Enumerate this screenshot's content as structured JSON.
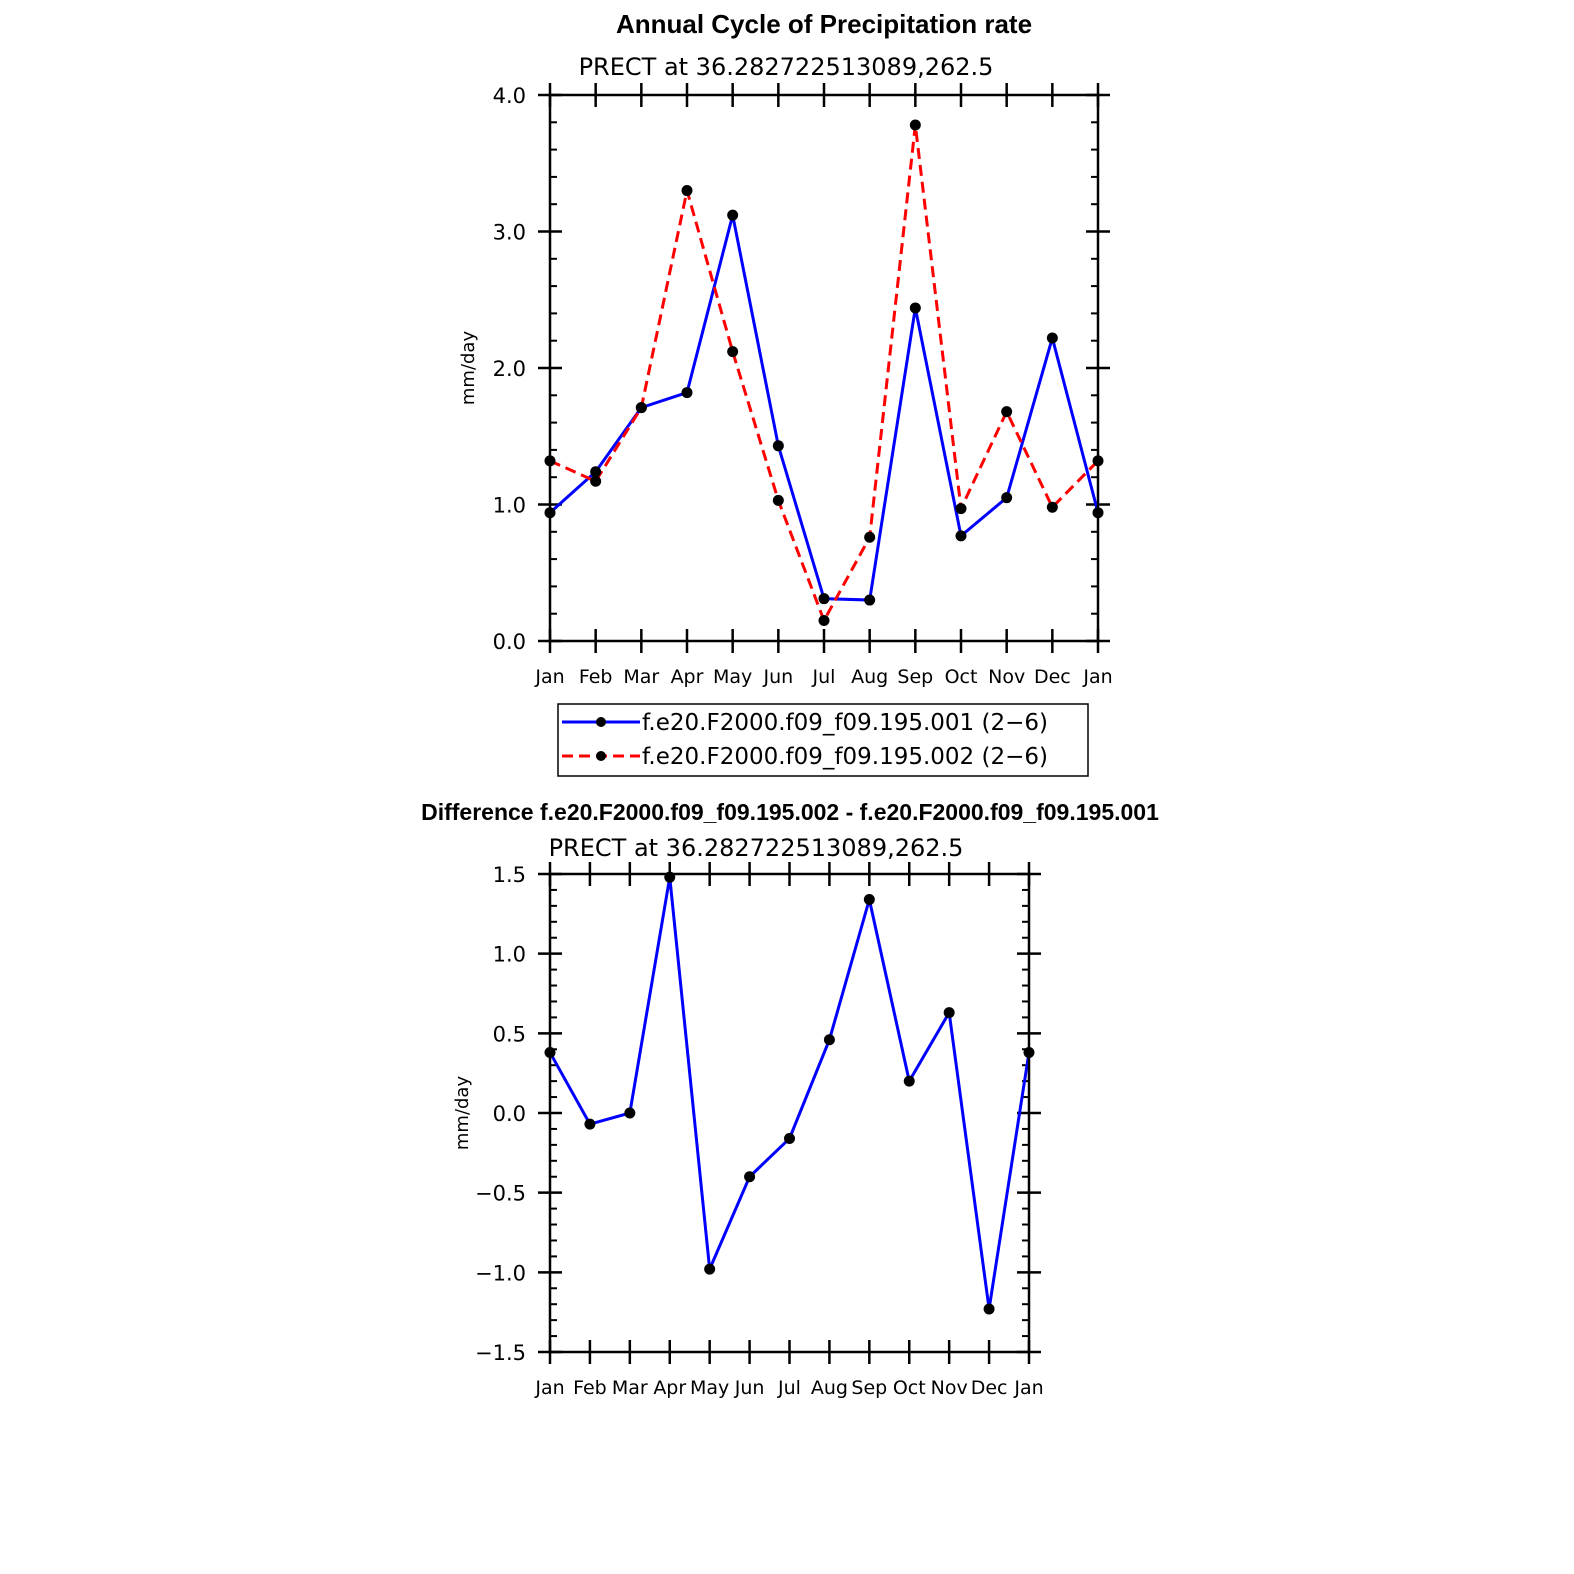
{
  "chart_data": [
    {
      "type": "line",
      "title": "Annual Cycle of Precipitation rate",
      "subtitle": "PRECT at 36.282722513089,262.5",
      "ylabel": "mm/day",
      "xlabel": "",
      "ylim": [
        0.0,
        4.0
      ],
      "yticks": [
        "0.0",
        "1.0",
        "2.0",
        "3.0",
        "4.0"
      ],
      "categories": [
        "Jan",
        "Feb",
        "Mar",
        "Apr",
        "May",
        "Jun",
        "Jul",
        "Aug",
        "Sep",
        "Oct",
        "Nov",
        "Dec",
        "Jan"
      ],
      "legend_position": "bottom",
      "series": [
        {
          "name": "f.e20.F2000.f09_f09.195.001 (2−6)",
          "color": "#0000ff",
          "dash": "solid",
          "values": [
            0.94,
            1.24,
            1.71,
            1.82,
            3.12,
            1.43,
            0.31,
            0.3,
            2.44,
            0.77,
            1.05,
            2.22,
            0.94
          ]
        },
        {
          "name": "f.e20.F2000.f09_f09.195.002 (2−6)",
          "color": "#ff0000",
          "dash": "dashed",
          "values": [
            1.32,
            1.17,
            1.71,
            3.3,
            2.12,
            1.03,
            0.15,
            0.76,
            3.78,
            0.97,
            1.68,
            0.98,
            1.32
          ]
        }
      ]
    },
    {
      "type": "line",
      "title": "Difference f.e20.F2000.f09_f09.195.002 - f.e20.F2000.f09_f09.195.001",
      "subtitle": "PRECT at 36.282722513089,262.5",
      "ylabel": "mm/day",
      "xlabel": "",
      "ylim": [
        -1.5,
        1.5
      ],
      "yticks": [
        "−1.5",
        "−1.0",
        "−0.5",
        "0.0",
        "0.5",
        "1.0",
        "1.5"
      ],
      "categories": [
        "Jan",
        "Feb",
        "Mar",
        "Apr",
        "May",
        "Jun",
        "Jul",
        "Aug",
        "Sep",
        "Oct",
        "Nov",
        "Dec",
        "Jan"
      ],
      "series": [
        {
          "name": "difference",
          "color": "#0000ff",
          "dash": "solid",
          "values": [
            0.38,
            -0.07,
            0.0,
            1.48,
            -0.98,
            -0.4,
            -0.16,
            0.46,
            1.34,
            0.2,
            0.63,
            -1.23,
            0.38
          ]
        }
      ]
    }
  ]
}
